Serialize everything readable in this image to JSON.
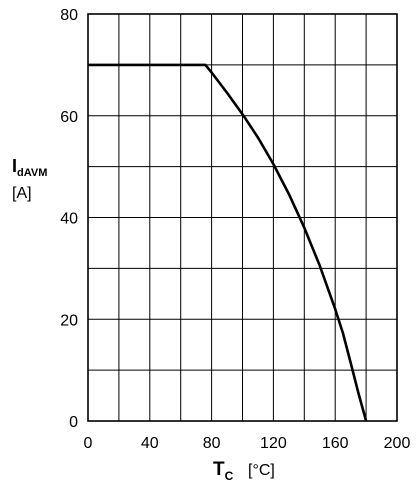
{
  "chart_data": {
    "type": "line",
    "title": "",
    "xlabel": {
      "symbol": "T",
      "subscript": "C",
      "unit": "[°C]"
    },
    "ylabel": {
      "symbol": "I",
      "subscript": "dAVM",
      "unit": "[A]"
    },
    "xlim": [
      0,
      200
    ],
    "ylim": [
      0,
      80
    ],
    "x_ticks": [
      0,
      40,
      80,
      120,
      160,
      200
    ],
    "y_ticks": [
      0,
      20,
      40,
      60,
      80
    ],
    "x_grid_step": 20,
    "y_grid_step": 10,
    "grid": true,
    "legend": "none",
    "line_color": "#000000",
    "series": [
      {
        "x": [
          0,
          76,
          80,
          90,
          100,
          110,
          120,
          130,
          140,
          150,
          160,
          165,
          170,
          175,
          180
        ],
        "y": [
          70,
          70,
          68.5,
          64.5,
          60.3,
          55.7,
          50.5,
          44.6,
          38.0,
          30.5,
          22.0,
          17.3,
          11.5,
          5.5,
          0
        ]
      }
    ]
  }
}
